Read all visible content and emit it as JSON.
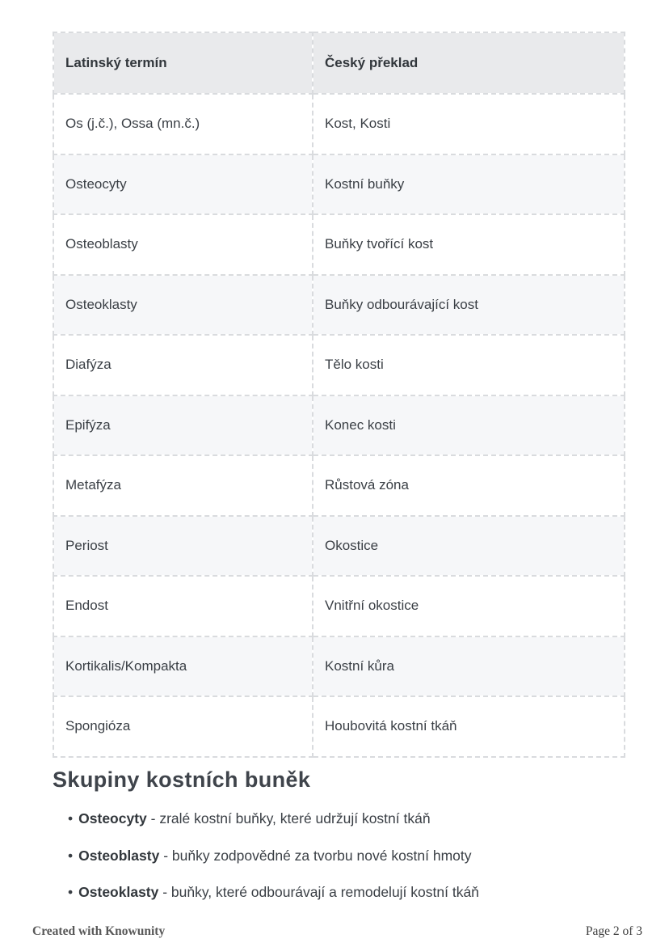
{
  "table": {
    "headers": [
      "Latinský termín",
      "Český překlad"
    ],
    "rows": [
      {
        "latin": "Os (j.č.), Ossa (mn.č.)",
        "czech": "Kost, Kosti"
      },
      {
        "latin": "Osteocyty",
        "czech": "Kostní buňky"
      },
      {
        "latin": "Osteoblasty",
        "czech": "Buňky tvořící kost"
      },
      {
        "latin": "Osteoklasty",
        "czech": "Buňky odbourávající kost"
      },
      {
        "latin": "Diafýza",
        "czech": "Tělo kosti"
      },
      {
        "latin": "Epifýza",
        "czech": "Konec kosti"
      },
      {
        "latin": "Metafýza",
        "czech": "Růstová zóna"
      },
      {
        "latin": "Periost",
        "czech": "Okostice"
      },
      {
        "latin": "Endost",
        "czech": "Vnitřní okostice"
      },
      {
        "latin": "Kortikalis/Kompakta",
        "czech": "Kostní kůra"
      },
      {
        "latin": "Spongióza",
        "czech": "Houbovitá kostní tkáň"
      }
    ]
  },
  "section": {
    "heading": "Skupiny kostních buněk",
    "bullet_char": "•",
    "bullets": [
      {
        "term": "Osteocyty",
        "desc": " - zralé kostní buňky, které udržují kostní tkáň"
      },
      {
        "term": "Osteoblasty",
        "desc": " - buňky zodpovědné za tvorbu nové kostní hmoty"
      },
      {
        "term": "Osteoklasty",
        "desc": " - buňky, které odbourávají a remodelují kostní tkáň"
      }
    ]
  },
  "footer": {
    "left": "Created with Knowunity",
    "right": "Page 2 of 3"
  },
  "colors": {
    "header_bg": "#e9eaec",
    "alt_row_bg": "#f6f7f9",
    "border": "#d9dbde",
    "body_text": "#3a3f45",
    "heading_text": "#3f444b"
  }
}
